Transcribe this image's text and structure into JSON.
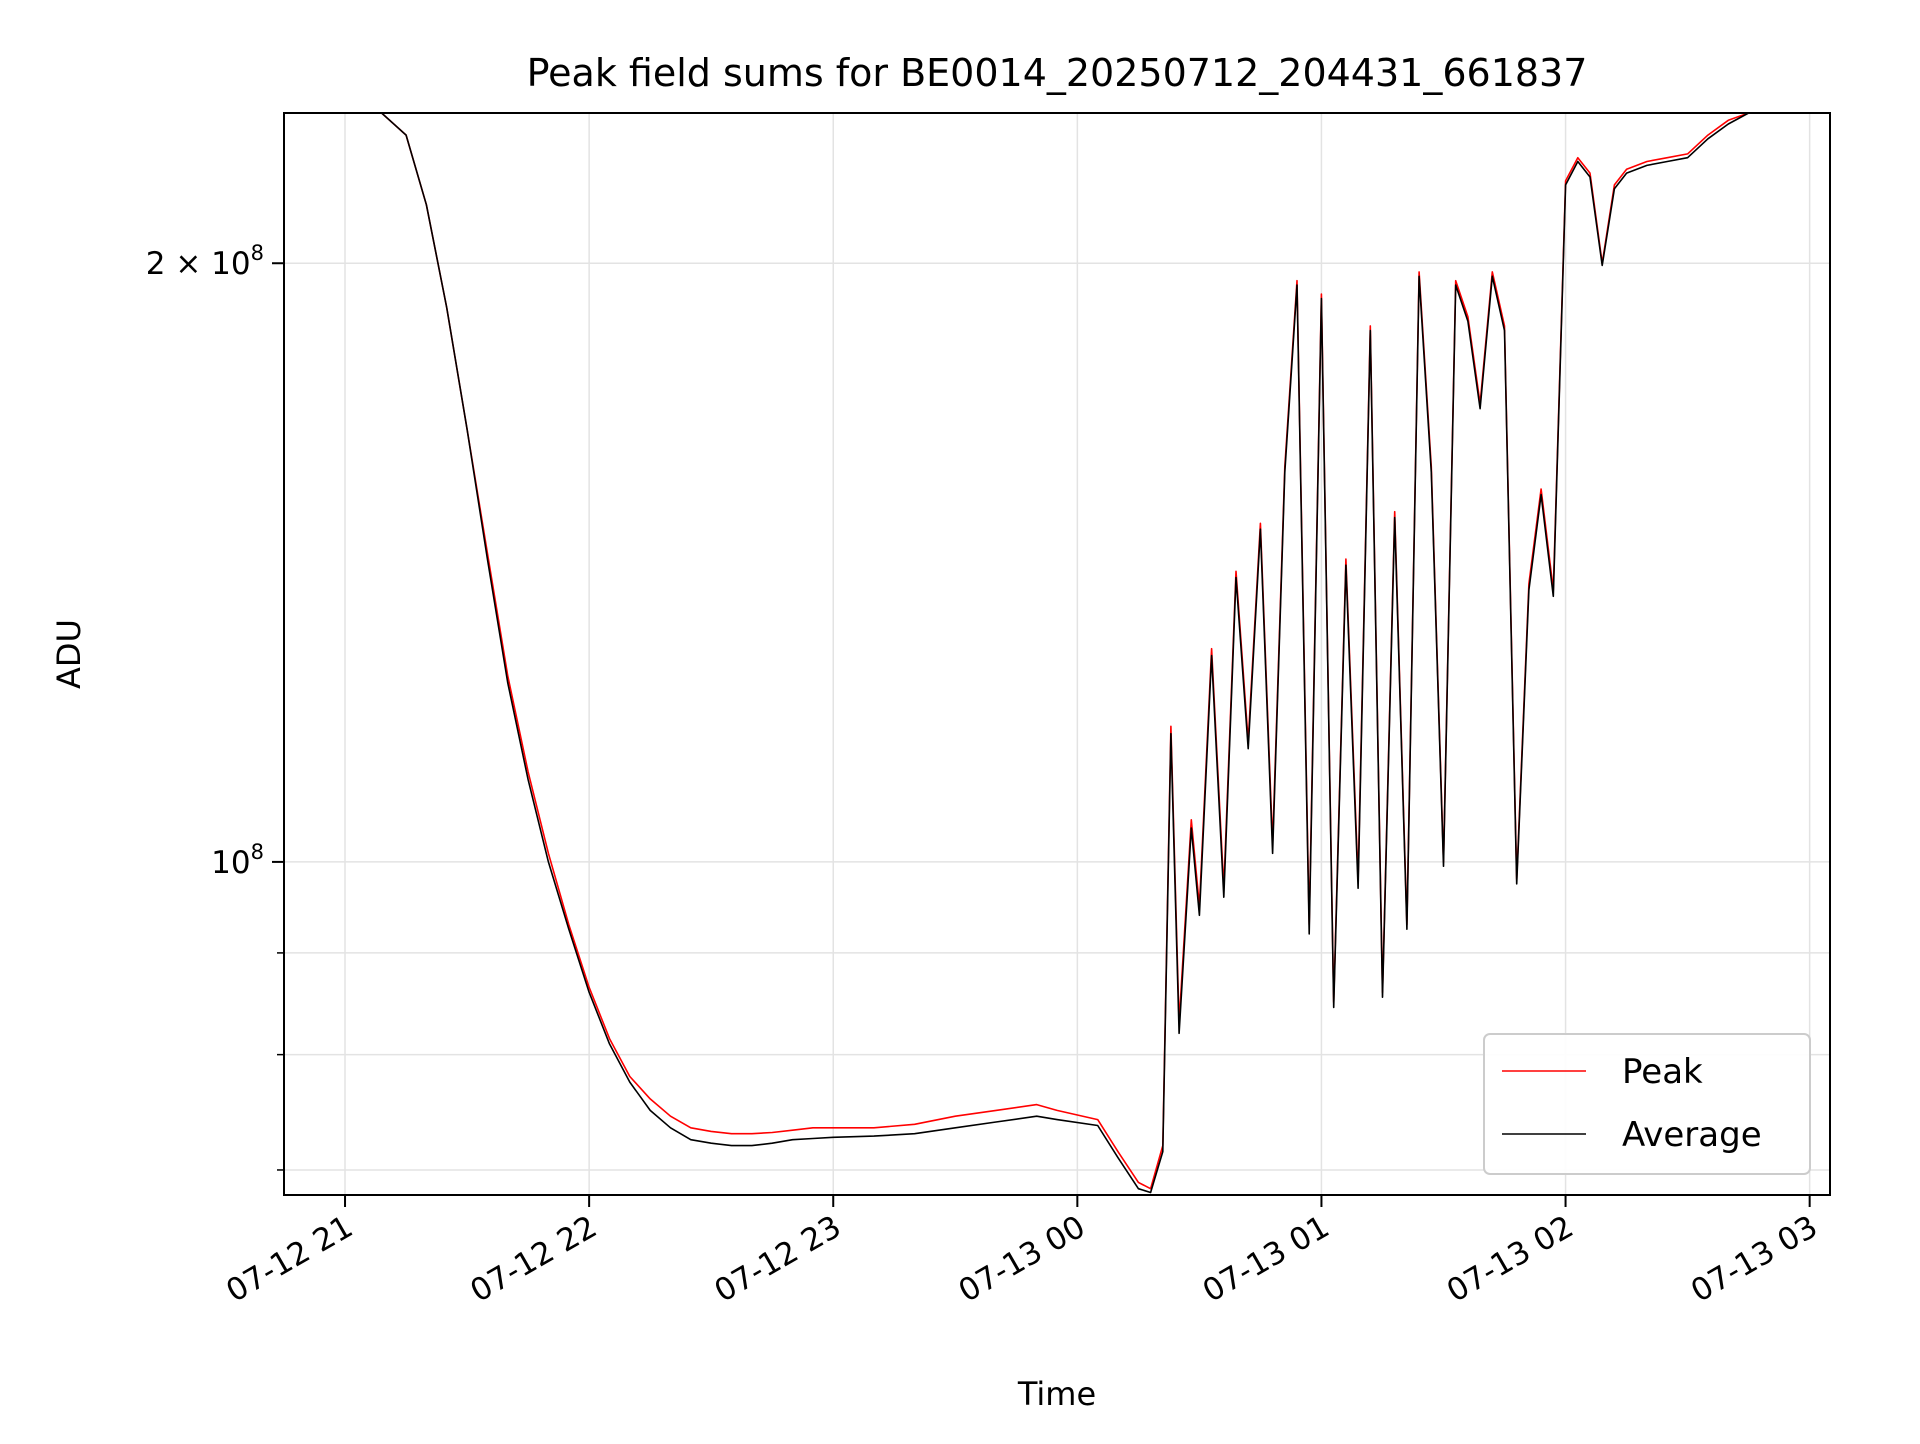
{
  "chart_data": {
    "type": "line",
    "title": "Peak field sums for BE0014_20250712_204431_661837",
    "xlabel": "Time",
    "ylabel": "ADU",
    "y_scale": "log",
    "ylim": [
      68000000,
      238000000
    ],
    "xlim": [
      "2025-07-12T20:45",
      "2025-07-13T03:05"
    ],
    "x_ticks": [
      {
        "t": "2025-07-12T21:00",
        "label": "07-12 21"
      },
      {
        "t": "2025-07-12T22:00",
        "label": "07-12 22"
      },
      {
        "t": "2025-07-12T23:00",
        "label": "07-12 23"
      },
      {
        "t": "2025-07-13T00:00",
        "label": "07-13 00"
      },
      {
        "t": "2025-07-13T01:00",
        "label": "07-13 01"
      },
      {
        "t": "2025-07-13T02:00",
        "label": "07-13 02"
      },
      {
        "t": "2025-07-13T03:00",
        "label": "07-13 03"
      }
    ],
    "y_major_ticks": [
      {
        "value": 100000000,
        "mantissa": "",
        "exp": "8"
      },
      {
        "value": 200000000,
        "mantissa": "2",
        "exp": "8"
      }
    ],
    "y_minor_ticks": [
      70000000,
      80000000,
      90000000
    ],
    "grid": true,
    "legend_position": "bottom-right",
    "colors": {
      "Peak": "#ff0000",
      "Average": "#000000"
    },
    "series": [
      {
        "name": "Peak",
        "color": "#ff0000",
        "x": [
          "2025-07-12T21:09",
          "2025-07-12T21:15",
          "2025-07-12T21:20",
          "2025-07-12T21:25",
          "2025-07-12T21:30",
          "2025-07-12T21:35",
          "2025-07-12T21:40",
          "2025-07-12T21:45",
          "2025-07-12T21:50",
          "2025-07-12T21:55",
          "2025-07-12T22:00",
          "2025-07-12T22:05",
          "2025-07-12T22:10",
          "2025-07-12T22:15",
          "2025-07-12T22:20",
          "2025-07-12T22:25",
          "2025-07-12T22:30",
          "2025-07-12T22:35",
          "2025-07-12T22:40",
          "2025-07-12T22:45",
          "2025-07-12T22:50",
          "2025-07-12T22:55",
          "2025-07-12T23:00",
          "2025-07-12T23:10",
          "2025-07-12T23:20",
          "2025-07-12T23:30",
          "2025-07-12T23:40",
          "2025-07-12T23:50",
          "2025-07-12T23:55",
          "2025-07-13T00:05",
          "2025-07-13T00:10",
          "2025-07-13T00:15",
          "2025-07-13T00:18",
          "2025-07-13T00:21",
          "2025-07-13T00:23",
          "2025-07-13T00:25",
          "2025-07-13T00:28",
          "2025-07-13T00:30",
          "2025-07-13T00:33",
          "2025-07-13T00:36",
          "2025-07-13T00:39",
          "2025-07-13T00:42",
          "2025-07-13T00:45",
          "2025-07-13T00:48",
          "2025-07-13T00:51",
          "2025-07-13T00:54",
          "2025-07-13T00:57",
          "2025-07-13T01:00",
          "2025-07-13T01:03",
          "2025-07-13T01:06",
          "2025-07-13T01:09",
          "2025-07-13T01:12",
          "2025-07-13T01:15",
          "2025-07-13T01:18",
          "2025-07-13T01:21",
          "2025-07-13T01:24",
          "2025-07-13T01:27",
          "2025-07-13T01:30",
          "2025-07-13T01:33",
          "2025-07-13T01:36",
          "2025-07-13T01:39",
          "2025-07-13T01:42",
          "2025-07-13T01:45",
          "2025-07-13T01:48",
          "2025-07-13T01:51",
          "2025-07-13T01:54",
          "2025-07-13T01:57",
          "2025-07-13T02:00",
          "2025-07-13T02:03",
          "2025-07-13T02:06",
          "2025-07-13T02:09",
          "2025-07-13T02:12",
          "2025-07-13T02:15",
          "2025-07-13T02:20",
          "2025-07-13T02:25",
          "2025-07-13T02:30",
          "2025-07-13T02:35",
          "2025-07-13T02:40",
          "2025-07-13T02:45"
        ],
        "y": [
          238000000,
          232000000,
          214000000,
          190000000,
          165000000,
          143000000,
          124000000,
          111000000,
          101000000,
          93000000,
          86500000,
          81500000,
          78000000,
          76000000,
          74500000,
          73500000,
          73200000,
          73000000,
          73000000,
          73100000,
          73300000,
          73500000,
          73500000,
          73500000,
          73800000,
          74500000,
          75000000,
          75500000,
          75000000,
          74200000,
          71500000,
          69000000,
          68500000,
          72000000,
          117000000,
          83000000,
          105000000,
          95000000,
          128000000,
          97000000,
          140000000,
          115000000,
          148000000,
          102000000,
          158000000,
          196000000,
          93000000,
          193000000,
          85000000,
          142000000,
          98000000,
          186000000,
          86000000,
          150000000,
          93000000,
          198000000,
          158000000,
          100000000,
          196000000,
          188000000,
          170000000,
          198000000,
          186000000,
          98000000,
          138000000,
          154000000,
          137000000,
          220000000,
          226000000,
          222000000,
          200000000,
          219000000,
          223000000,
          225000000,
          226000000,
          227000000,
          232000000,
          236000000,
          238000000
        ]
      },
      {
        "name": "Average",
        "color": "#000000",
        "x": [
          "2025-07-12T21:09",
          "2025-07-12T21:15",
          "2025-07-12T21:20",
          "2025-07-12T21:25",
          "2025-07-12T21:30",
          "2025-07-12T21:35",
          "2025-07-12T21:40",
          "2025-07-12T21:45",
          "2025-07-12T21:50",
          "2025-07-12T21:55",
          "2025-07-12T22:00",
          "2025-07-12T22:05",
          "2025-07-12T22:10",
          "2025-07-12T22:15",
          "2025-07-12T22:20",
          "2025-07-12T22:25",
          "2025-07-12T22:30",
          "2025-07-12T22:35",
          "2025-07-12T22:40",
          "2025-07-12T22:45",
          "2025-07-12T22:50",
          "2025-07-12T22:55",
          "2025-07-12T23:00",
          "2025-07-12T23:10",
          "2025-07-12T23:20",
          "2025-07-12T23:30",
          "2025-07-12T23:40",
          "2025-07-12T23:50",
          "2025-07-12T23:55",
          "2025-07-13T00:05",
          "2025-07-13T00:10",
          "2025-07-13T00:15",
          "2025-07-13T00:18",
          "2025-07-13T00:21",
          "2025-07-13T00:23",
          "2025-07-13T00:25",
          "2025-07-13T00:28",
          "2025-07-13T00:30",
          "2025-07-13T00:33",
          "2025-07-13T00:36",
          "2025-07-13T00:39",
          "2025-07-13T00:42",
          "2025-07-13T00:45",
          "2025-07-13T00:48",
          "2025-07-13T00:51",
          "2025-07-13T00:54",
          "2025-07-13T00:57",
          "2025-07-13T01:00",
          "2025-07-13T01:03",
          "2025-07-13T01:06",
          "2025-07-13T01:09",
          "2025-07-13T01:12",
          "2025-07-13T01:15",
          "2025-07-13T01:18",
          "2025-07-13T01:21",
          "2025-07-13T01:24",
          "2025-07-13T01:27",
          "2025-07-13T01:30",
          "2025-07-13T01:33",
          "2025-07-13T01:36",
          "2025-07-13T01:39",
          "2025-07-13T01:42",
          "2025-07-13T01:45",
          "2025-07-13T01:48",
          "2025-07-13T01:51",
          "2025-07-13T01:54",
          "2025-07-13T01:57",
          "2025-07-13T02:00",
          "2025-07-13T02:03",
          "2025-07-13T02:06",
          "2025-07-13T02:09",
          "2025-07-13T02:12",
          "2025-07-13T02:15",
          "2025-07-13T02:20",
          "2025-07-13T02:25",
          "2025-07-13T02:30",
          "2025-07-13T02:35",
          "2025-07-13T02:40",
          "2025-07-13T02:45"
        ],
        "y": [
          238000000,
          232000000,
          214000000,
          190000000,
          165000000,
          142000000,
          123000000,
          110000000,
          100000000,
          92500000,
          86000000,
          81000000,
          77500000,
          75000000,
          73500000,
          72500000,
          72200000,
          72000000,
          72000000,
          72200000,
          72500000,
          72600000,
          72700000,
          72800000,
          73000000,
          73500000,
          74000000,
          74500000,
          74200000,
          73700000,
          71000000,
          68500000,
          68200000,
          71500000,
          116000000,
          82000000,
          104000000,
          94000000,
          127000000,
          96000000,
          139000000,
          114000000,
          147000000,
          101000000,
          157000000,
          195000000,
          92000000,
          192000000,
          84500000,
          141000000,
          97000000,
          185000000,
          85500000,
          149000000,
          92500000,
          197000000,
          157000000,
          99500000,
          195000000,
          187000000,
          169000000,
          197000000,
          185000000,
          97500000,
          137000000,
          153000000,
          136000000,
          219000000,
          225000000,
          221000000,
          199500000,
          218000000,
          222000000,
          224000000,
          225000000,
          226000000,
          231000000,
          235000000,
          238000000
        ]
      }
    ]
  }
}
